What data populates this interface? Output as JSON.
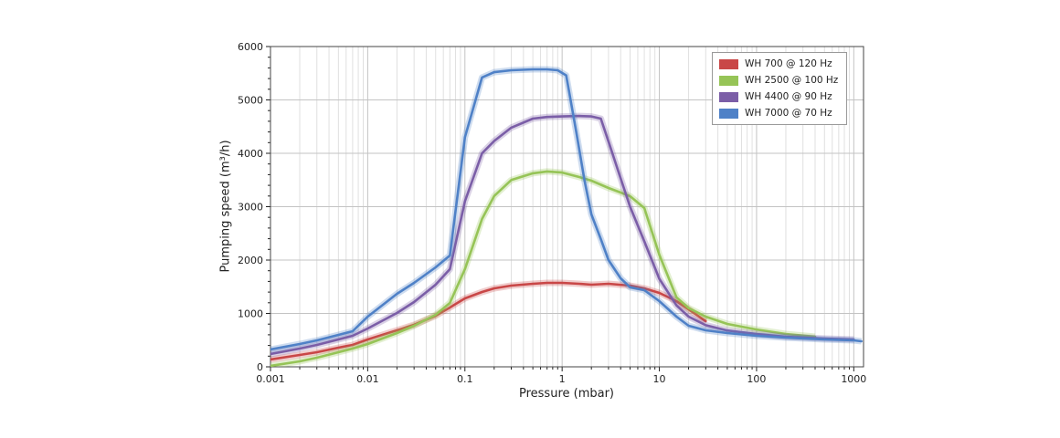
{
  "page": {
    "background_color": "#ffffff",
    "axis_color": "#222222",
    "grid_major_color": "#c3c3c3",
    "grid_minor_color": "#e0e0e0",
    "plot_border_color": "#444444"
  },
  "chart_data": {
    "type": "line",
    "title": "",
    "xlabel": "Pressure (mbar)",
    "ylabel": "Pumping speed (m³/h)",
    "x_scale": "log",
    "xlim": [
      0.001,
      1260
    ],
    "ylim": [
      0,
      6000
    ],
    "grid": true,
    "legend_position": "top-right",
    "x_ticks": [
      0.001,
      0.01,
      0.1,
      1,
      10,
      100,
      1000
    ],
    "x_tick_labels": [
      "0.001",
      "0.01",
      "0.1",
      "1",
      "10",
      "100",
      "1000"
    ],
    "y_ticks": [
      0,
      1000,
      2000,
      3000,
      4000,
      5000,
      6000
    ],
    "y_tick_labels": [
      "0",
      "1000",
      "2000",
      "3000",
      "4000",
      "5000",
      "6000"
    ],
    "y_minor_step": 200,
    "series": [
      {
        "name": "WH 700 @ 120 Hz",
        "color": "#c94747",
        "points": [
          [
            0.001,
            137
          ],
          [
            0.002,
            222
          ],
          [
            0.003,
            274
          ],
          [
            0.005,
            359
          ],
          [
            0.007,
            410
          ],
          [
            0.01,
            513
          ],
          [
            0.02,
            684
          ],
          [
            0.03,
            786
          ],
          [
            0.05,
            957
          ],
          [
            0.07,
            1111
          ],
          [
            0.1,
            1282
          ],
          [
            0.15,
            1402
          ],
          [
            0.2,
            1470
          ],
          [
            0.3,
            1521
          ],
          [
            0.5,
            1556
          ],
          [
            0.7,
            1573
          ],
          [
            1,
            1573
          ],
          [
            1.5,
            1556
          ],
          [
            2,
            1538
          ],
          [
            3,
            1556
          ],
          [
            5,
            1521
          ],
          [
            7,
            1470
          ],
          [
            10,
            1385
          ],
          [
            15,
            1231
          ],
          [
            20,
            1077
          ],
          [
            30,
            855
          ]
        ]
      },
      {
        "name": "WH 2500 @ 100 Hz",
        "color": "#96c457",
        "points": [
          [
            0.001,
            17
          ],
          [
            0.002,
            103
          ],
          [
            0.003,
            171
          ],
          [
            0.005,
            274
          ],
          [
            0.007,
            342
          ],
          [
            0.01,
            427
          ],
          [
            0.02,
            632
          ],
          [
            0.03,
            769
          ],
          [
            0.05,
            975
          ],
          [
            0.07,
            1197
          ],
          [
            0.1,
            1830
          ],
          [
            0.15,
            2770
          ],
          [
            0.2,
            3200
          ],
          [
            0.3,
            3500
          ],
          [
            0.5,
            3625
          ],
          [
            0.7,
            3660
          ],
          [
            1,
            3640
          ],
          [
            1.5,
            3556
          ],
          [
            2,
            3487
          ],
          [
            3,
            3350
          ],
          [
            4,
            3265
          ],
          [
            5,
            3197
          ],
          [
            7,
            2974
          ],
          [
            10,
            2100
          ],
          [
            15,
            1300
          ],
          [
            20,
            1100
          ],
          [
            30,
            940
          ],
          [
            50,
            803
          ],
          [
            100,
            700
          ],
          [
            200,
            615
          ],
          [
            400,
            564
          ]
        ]
      },
      {
        "name": "WH 4400 @ 90 Hz",
        "color": "#7b5ea7",
        "points": [
          [
            0.001,
            239
          ],
          [
            0.002,
            342
          ],
          [
            0.003,
            410
          ],
          [
            0.005,
            513
          ],
          [
            0.007,
            581
          ],
          [
            0.01,
            718
          ],
          [
            0.02,
            1009
          ],
          [
            0.03,
            1214
          ],
          [
            0.05,
            1538
          ],
          [
            0.07,
            1829
          ],
          [
            0.1,
            3100
          ],
          [
            0.15,
            4000
          ],
          [
            0.2,
            4230
          ],
          [
            0.3,
            4480
          ],
          [
            0.5,
            4650
          ],
          [
            0.7,
            4680
          ],
          [
            1,
            4690
          ],
          [
            1.5,
            4700
          ],
          [
            2,
            4690
          ],
          [
            2.5,
            4650
          ],
          [
            3,
            4220
          ],
          [
            4,
            3530
          ],
          [
            5,
            3000
          ],
          [
            7,
            2350
          ],
          [
            10,
            1650
          ],
          [
            15,
            1150
          ],
          [
            20,
            940
          ],
          [
            30,
            780
          ],
          [
            50,
            680
          ],
          [
            100,
            615
          ],
          [
            200,
            564
          ],
          [
            500,
            530
          ],
          [
            1000,
            513
          ]
        ]
      },
      {
        "name": "WH 7000 @ 70 Hz",
        "color": "#4f81c7",
        "points": [
          [
            0.001,
            325
          ],
          [
            0.002,
            427
          ],
          [
            0.003,
            496
          ],
          [
            0.005,
            598
          ],
          [
            0.007,
            667
          ],
          [
            0.01,
            940
          ],
          [
            0.02,
            1368
          ],
          [
            0.03,
            1573
          ],
          [
            0.05,
            1863
          ],
          [
            0.07,
            2085
          ],
          [
            0.1,
            4300
          ],
          [
            0.15,
            5420
          ],
          [
            0.2,
            5520
          ],
          [
            0.3,
            5556
          ],
          [
            0.5,
            5573
          ],
          [
            0.7,
            5573
          ],
          [
            0.9,
            5556
          ],
          [
            1.1,
            5460
          ],
          [
            1.2,
            5077
          ],
          [
            1.4,
            4393
          ],
          [
            1.7,
            3487
          ],
          [
            2,
            2855
          ],
          [
            2.5,
            2393
          ],
          [
            3,
            2000
          ],
          [
            4,
            1658
          ],
          [
            5,
            1490
          ],
          [
            7,
            1436
          ],
          [
            10,
            1231
          ],
          [
            15,
            940
          ],
          [
            20,
            769
          ],
          [
            30,
            684
          ],
          [
            50,
            632
          ],
          [
            100,
            581
          ],
          [
            200,
            547
          ],
          [
            500,
            513
          ],
          [
            1000,
            496
          ],
          [
            1200,
            479
          ]
        ]
      }
    ]
  }
}
